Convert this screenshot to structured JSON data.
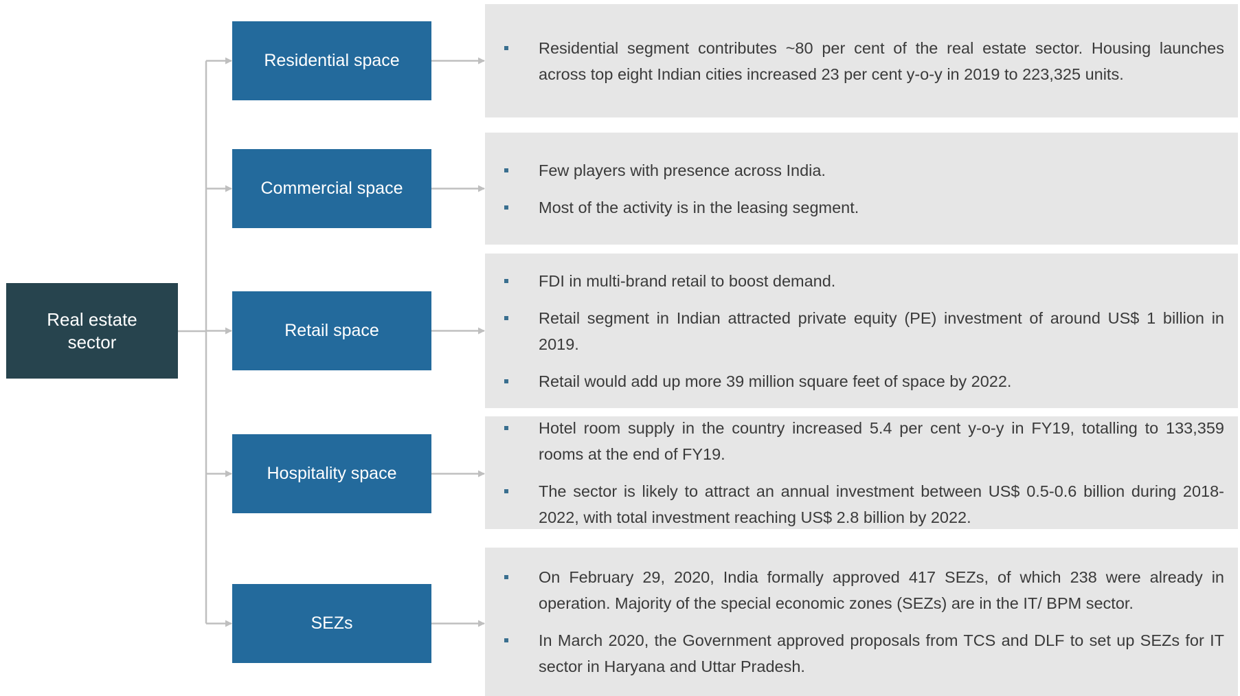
{
  "root": {
    "label": "Real estate sector"
  },
  "segments": [
    {
      "label": "Residential space",
      "bullets": [
        "Residential segment contributes ~80 per cent of the real estate sector. Housing launches across top eight Indian cities increased 23 per cent y-o-y in 2019 to 223,325 units."
      ]
    },
    {
      "label": "Commercial space",
      "bullets": [
        "Few players with presence across India.",
        "Most of the activity is in the leasing segment."
      ]
    },
    {
      "label": "Retail space",
      "bullets": [
        "FDI in multi-brand retail to boost demand.",
        "Retail segment in Indian attracted private equity (PE) investment of around US$ 1 billion in 2019.",
        "Retail would add up more 39 million square feet of space by 2022."
      ]
    },
    {
      "label": "Hospitality space",
      "bullets": [
        "Hotel room supply in the country increased 5.4 per cent y-o-y in FY19, totalling to 133,359 rooms at the end of FY19.",
        "The sector is likely to attract an annual investment between US$ 0.5-0.6 billion during 2018-2022, with total investment reaching US$ 2.8 billion by 2022."
      ]
    },
    {
      "label": "SEZs",
      "bullets": [
        "On February 29, 2020, India formally approved 417 SEZs, of which 238 were already in operation. Majority of the special economic zones (SEZs) are in the IT/ BPM sector.",
        "In March 2020, the Government approved proposals from TCS and DLF to set up SEZs for IT sector in Haryana and Uttar Pradesh."
      ]
    }
  ]
}
